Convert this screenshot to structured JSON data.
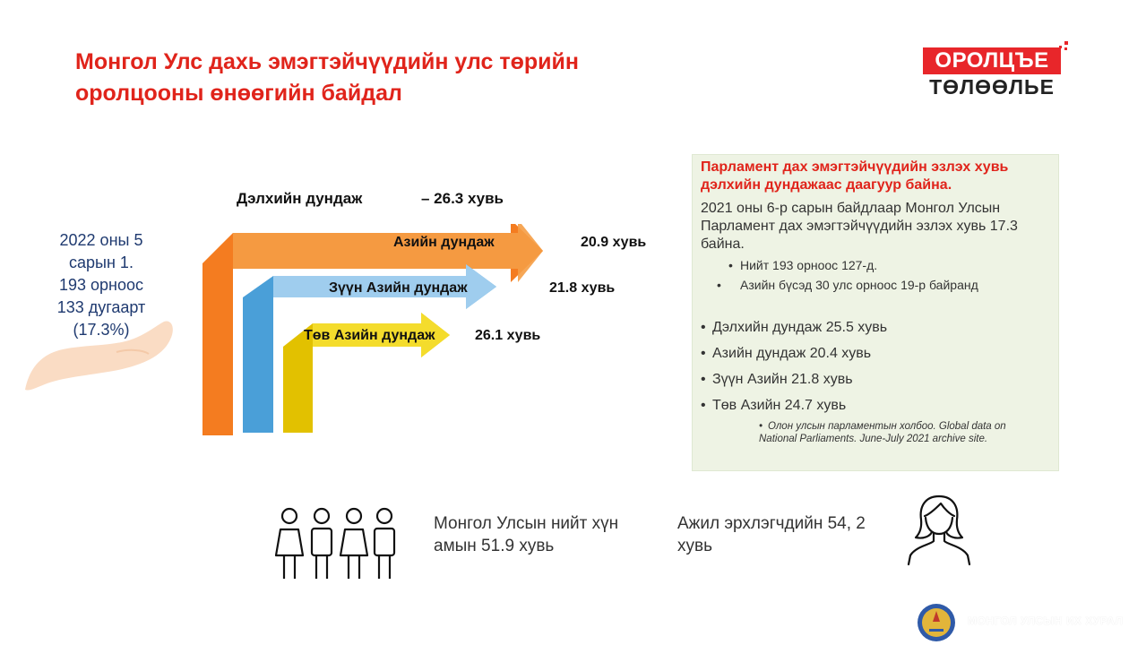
{
  "title": "Монгол Улс дахь эмэгтэйчүүдийн улс төрийн оролцооны өнөөгийн байдал",
  "logo": {
    "top": "ОРОЛЦЪЕ",
    "bottom": "ТӨЛӨӨЛЬЕ"
  },
  "world": {
    "label": "Дэлхийн дундаж",
    "value": "– 26.3 хувь"
  },
  "arrows": [
    {
      "label": "Азийн дундаж",
      "value": "20.9 хувь",
      "color": "#f47c20",
      "head_color": "#f59d45"
    },
    {
      "label": "Зүүн Азийн дундаж",
      "value": "21.8 хувь",
      "color": "#4a9fd8",
      "head_color": "#9fcdee"
    },
    {
      "label": "Төв Азийн дундаж",
      "value": "26.1 хувь",
      "color": "#e2c100",
      "head_color": "#f4dc2c"
    }
  ],
  "hand_text": [
    "2022 оны 5",
    "сарын 1.",
    "193 орноос",
    "133 дугаарт",
    "(17.3%)"
  ],
  "info": {
    "heading": "Парламент дах эмэгтэйчүүдийн эзлэх хувь дэлхийн дундажаас даагуур байна.",
    "intro": "2021 оны 6-р сарын байдлаар Монгол Улсын Парламент дах эмэгтэйчүүдийн эзлэх хувь 17.3 байна.",
    "sub_bullets": [
      "Нийт 193 орноос 127-д.",
      "Азийн бүсэд 30 улс орноос 19-р байранд"
    ],
    "bullets": [
      "Дэлхийн дундаж 25.5 хувь",
      "Азийн дундаж  20.4 хувь",
      "Зүүн Азийн 21.8 хувь",
      "Төв Азийн 24.7 хувь"
    ],
    "source": "Олон улсын парламентын холбоо. Global data on National Parliaments. June-July 2021 archive site."
  },
  "population_text": "Монгол Улсын нийт хүн амын 51.9 хувь",
  "employment_text": "Ажил эрхлэгчдийн 54, 2 хувь",
  "footer": "МОНГОЛ УЛСЫН ИХ ХУРАЛ"
}
